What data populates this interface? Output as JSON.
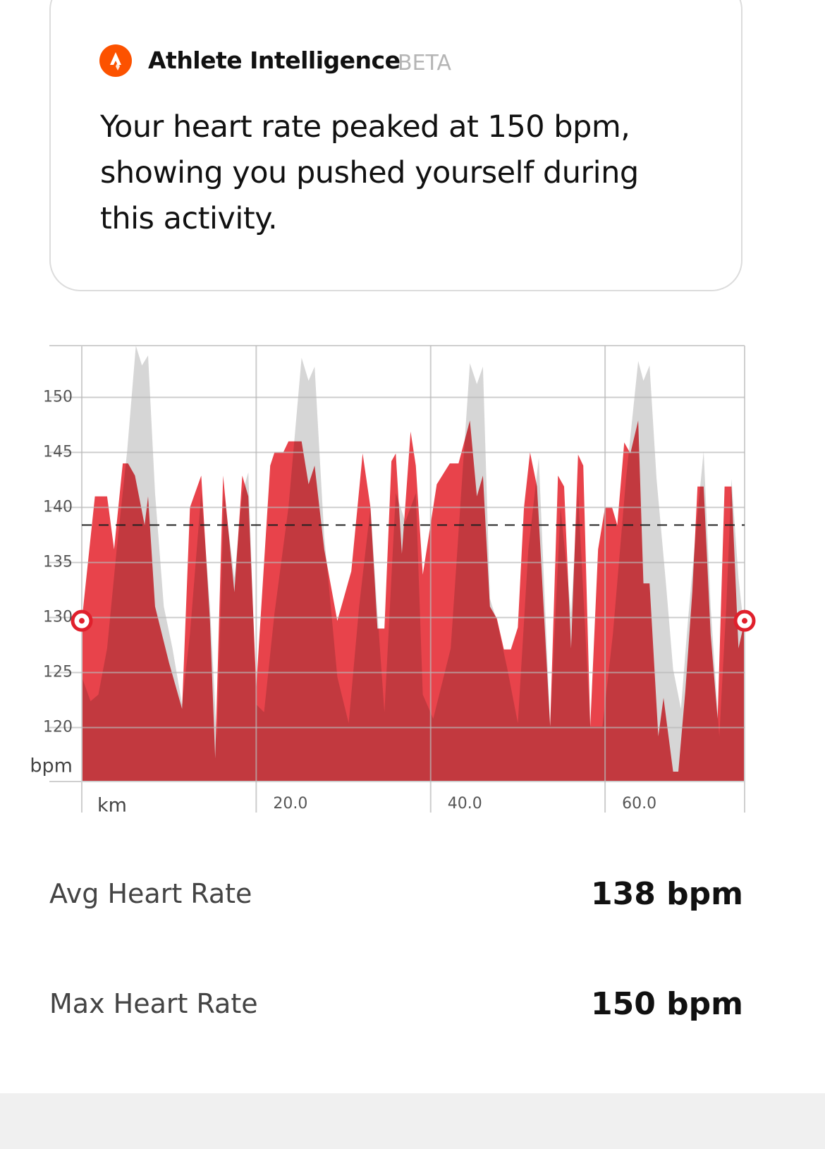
{
  "card": {
    "title": "Athlete Intelligence",
    "badge": "BETA",
    "text": "Your heart rate peaked at 150 bpm, showing you pushed yourself during this activity."
  },
  "chart_data": {
    "type": "area",
    "x_label": "km",
    "y_label": "bpm",
    "xlim": [
      0,
      76
    ],
    "ylim": [
      115.1,
      154.7
    ],
    "xticks": [
      {
        "value": 20,
        "label": "20.0"
      },
      {
        "value": 40,
        "label": "40.0"
      },
      {
        "value": 60,
        "label": "60.0"
      }
    ],
    "yticks": [
      120,
      125,
      130,
      135,
      140,
      145,
      150
    ],
    "grid": true,
    "avg_line": 138.4,
    "series": [
      {
        "color": "#e8434b",
        "x": [
          0,
          1.5,
          2.9,
          3.7,
          4.7,
          5.3,
          6.1,
          7.2,
          7.6,
          8.4,
          10.0,
          11.5,
          12.4,
          13.7,
          14.7,
          15.3,
          16.2,
          17.5,
          18.4,
          19.1,
          20.0,
          21.6,
          22.1,
          23.1,
          23.7,
          25.2,
          26.0,
          26.7,
          27.8,
          29.3,
          30.9,
          32.2,
          33.1,
          33.9,
          34.7,
          35.5,
          36.0,
          36.7,
          37.7,
          38.3,
          39.1,
          40.7,
          42.2,
          43.2,
          44.5,
          45.3,
          46.0,
          46.8,
          47.6,
          48.4,
          49.2,
          50.0,
          50.7,
          51.4,
          52.2,
          53.7,
          54.6,
          55.3,
          56.1,
          56.9,
          57.5,
          58.3,
          59.2,
          60.0,
          60.8,
          61.4,
          62.2,
          62.9,
          63.8,
          64.4,
          65.1,
          66.1,
          66.7,
          67.8,
          68.4,
          69.2,
          70.0,
          70.6,
          71.3,
          72.1,
          72.9,
          73.7,
          74.5,
          75.3,
          76.0
        ],
        "values": [
          129.7,
          141.0,
          141.0,
          136.2,
          144.0,
          144.0,
          142.9,
          138.4,
          141.0,
          131.0,
          125.9,
          121.7,
          140.0,
          142.9,
          129.7,
          117.2,
          142.9,
          132.3,
          142.9,
          141.0,
          123.7,
          143.8,
          145.0,
          145.0,
          146.0,
          146.0,
          142.1,
          143.8,
          136.2,
          129.7,
          134.2,
          144.9,
          140.0,
          129.0,
          129.0,
          144.2,
          144.9,
          135.8,
          146.9,
          143.8,
          133.9,
          142.1,
          144.0,
          144.0,
          147.9,
          141.0,
          142.9,
          131.0,
          129.9,
          127.1,
          127.1,
          129.1,
          140.0,
          145.0,
          141.9,
          120.1,
          142.9,
          141.9,
          127.2,
          144.8,
          143.8,
          120.1,
          136.2,
          140.0,
          140.0,
          138.4,
          145.9,
          144.9,
          147.9,
          133.1,
          133.1,
          119.2,
          122.7,
          116.0,
          116.0,
          123.3,
          132.3,
          141.9,
          141.9,
          128.5,
          120.8,
          141.9,
          141.9,
          127.2,
          129.7
        ]
      },
      {
        "color": "#d6d6d6",
        "x": [
          0,
          1.0,
          1.9,
          2.9,
          4.0,
          5.2,
          6.2,
          6.9,
          7.6,
          8.4,
          9.4,
          10.4,
          11.5,
          12.4,
          13.7,
          14.7,
          15.5,
          16.3,
          17.5,
          18.4,
          19.1,
          20.0,
          20.9,
          22.1,
          23.7,
          25.2,
          26.0,
          26.7,
          27.8,
          29.3,
          30.6,
          31.8,
          33.1,
          33.9,
          34.7,
          36.0,
          37.1,
          38.3,
          39.1,
          40.3,
          42.3,
          44.5,
          45.3,
          46.0,
          46.8,
          47.6,
          48.8,
          50.0,
          51.2,
          52.4,
          53.7,
          54.9,
          56.1,
          56.9,
          58.3,
          59.7,
          60.9,
          62.4,
          63.8,
          64.4,
          65.1,
          65.9,
          67.0,
          67.8,
          68.7,
          69.5,
          70.6,
          71.3,
          72.1,
          73.1,
          73.9,
          74.5,
          75.3,
          76.0
        ],
        "values": [
          124.6,
          122.4,
          123.0,
          127.2,
          136.2,
          145.1,
          154.7,
          152.9,
          153.8,
          141.3,
          131.0,
          127.2,
          122.1,
          128.5,
          141.3,
          131.0,
          118.8,
          141.3,
          133.6,
          141.3,
          143.2,
          122.1,
          121.4,
          130.4,
          140.0,
          153.6,
          151.5,
          152.8,
          137.4,
          124.6,
          120.4,
          131.0,
          140.0,
          130.4,
          121.4,
          141.3,
          138.7,
          141.3,
          123.0,
          120.8,
          127.2,
          153.1,
          151.2,
          152.8,
          131.7,
          129.7,
          125.3,
          120.4,
          136.2,
          144.5,
          120.1,
          140.0,
          130.4,
          141.3,
          120.1,
          120.1,
          128.5,
          142.6,
          153.3,
          151.5,
          152.9,
          142.6,
          132.9,
          125.3,
          121.7,
          129.7,
          139.4,
          145.1,
          131.0,
          119.2,
          131.0,
          142.6,
          133.6,
          128.5
        ]
      }
    ]
  },
  "stats": [
    {
      "label": "Avg Heart Rate",
      "value": "138 bpm"
    },
    {
      "label": "Max Heart Rate",
      "value": "150 bpm"
    }
  ]
}
